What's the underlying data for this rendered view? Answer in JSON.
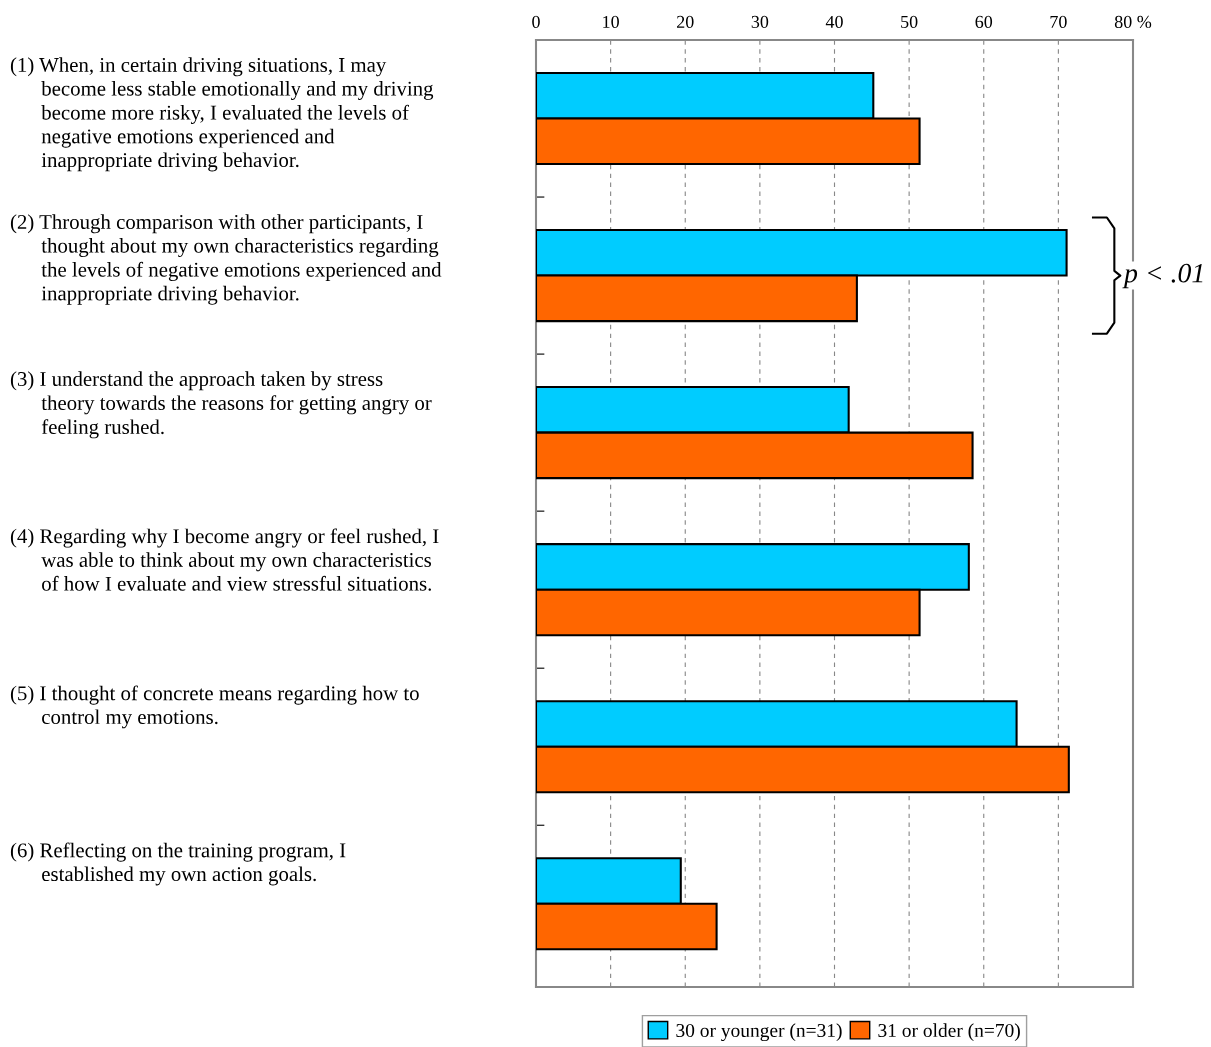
{
  "chart_data": {
    "type": "bar",
    "orientation": "horizontal",
    "categories": [
      "(1) When, in certain driving situations, I may\n      become less stable emotionally and my driving\n      become more risky, I evaluated the levels of\n      negative emotions experienced and\n      inappropriate driving behavior.",
      "(2) Through comparison with other participants, I\n      thought about my own characteristics regarding\n      the levels of negative emotions experienced and\n      inappropriate driving behavior.",
      "(3) I understand the approach taken by stress\n      theory towards the reasons for getting angry or\n      feeling rushed.",
      "(4) Regarding why I become angry or feel rushed, I\n      was able to think about my own characteristics\n      of how I evaluate and view stressful situations.",
      "(5) I thought of concrete means regarding how to\n      control my emotions.",
      "(6) Reflecting on the training program, I\n      established my own action goals."
    ],
    "series": [
      {
        "name": "30 or younger (n=31)",
        "color": "#00ccff",
        "values": [
          45.2,
          71.1,
          41.9,
          58.0,
          64.4,
          19.4
        ]
      },
      {
        "name": "31 or older (n=70)",
        "color": "#ff6600",
        "values": [
          51.4,
          43.0,
          58.5,
          51.4,
          71.4,
          24.2
        ]
      }
    ],
    "xlim": [
      0,
      80
    ],
    "xticks": [
      0,
      10,
      20,
      30,
      40,
      50,
      60,
      70,
      {
        "value": 80,
        "label": "80 %"
      }
    ],
    "grid": "x",
    "legend": "bottom",
    "annotations": [
      "p < .01"
    ]
  }
}
